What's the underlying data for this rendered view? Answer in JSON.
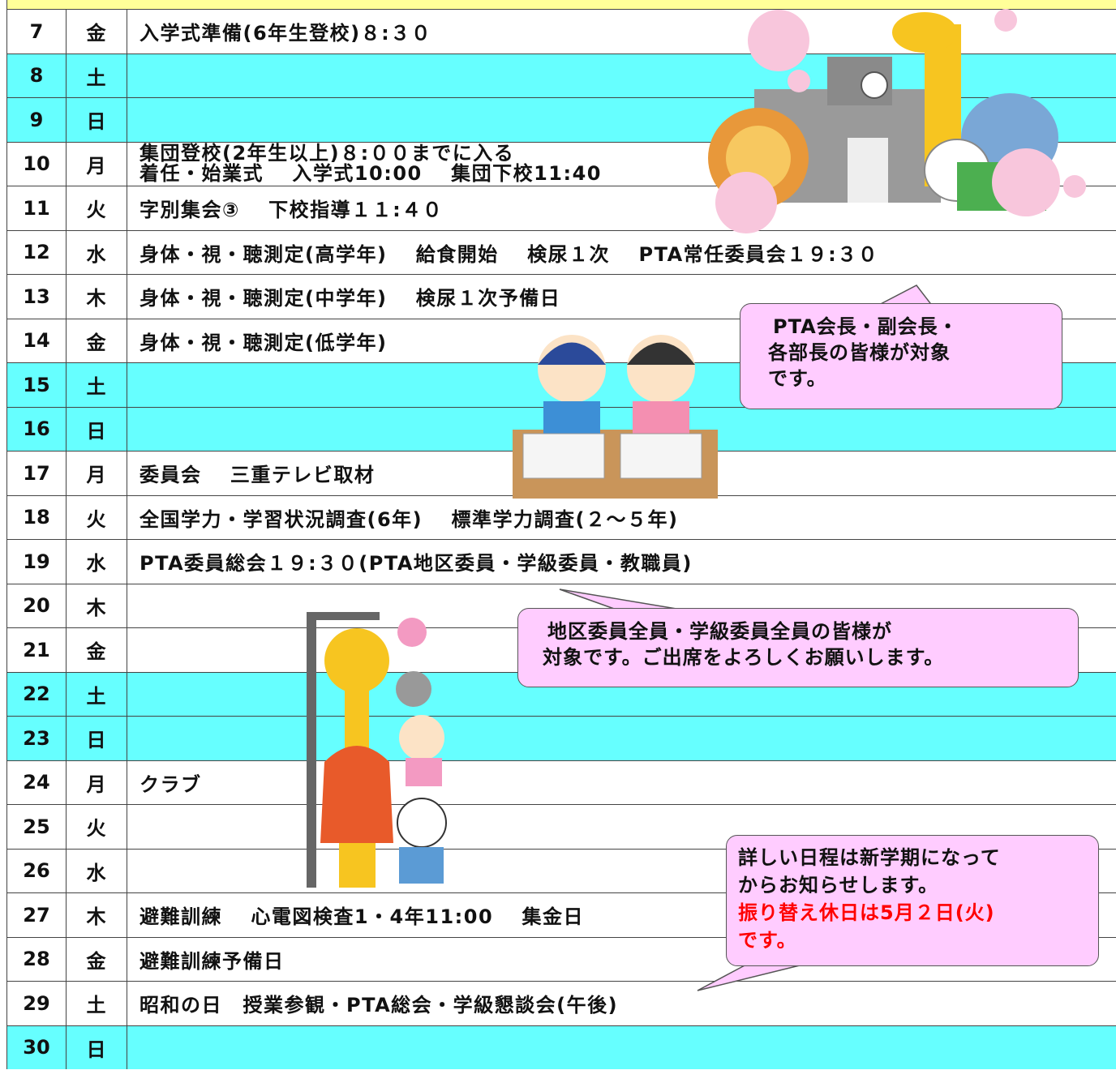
{
  "rows": [
    {
      "date": "7",
      "weekday": "金",
      "events": [
        "入学式準備(6年生登校)８:３０"
      ]
    },
    {
      "date": "8",
      "weekday": "土",
      "weekend": true
    },
    {
      "date": "9",
      "weekday": "日",
      "weekend": true
    },
    {
      "date": "10",
      "weekday": "月",
      "events": [
        "集団登校(2年生以上)８:００までに入る",
        "着任・始業式　 入学式10:00　 集団下校11:40"
      ]
    },
    {
      "date": "11",
      "weekday": "火",
      "events": [
        "字別集会③　 下校指導１１:４０"
      ]
    },
    {
      "date": "12",
      "weekday": "水",
      "events": [
        "身体・視・聴測定(高学年)　 給食開始　 検尿１次　 PTA常任委員会１９:３０"
      ]
    },
    {
      "date": "13",
      "weekday": "木",
      "events": [
        "身体・視・聴測定(中学年)　 検尿１次予備日"
      ]
    },
    {
      "date": "14",
      "weekday": "金",
      "events": [
        "身体・視・聴測定(低学年)"
      ]
    },
    {
      "date": "15",
      "weekday": "土",
      "weekend": true
    },
    {
      "date": "16",
      "weekday": "日",
      "weekend": true
    },
    {
      "date": "17",
      "weekday": "月",
      "events": [
        "委員会　 三重テレビ取材"
      ]
    },
    {
      "date": "18",
      "weekday": "火",
      "events": [
        "全国学力・学習状況調査(6年)　 標準学力調査(２～５年)"
      ]
    },
    {
      "date": "19",
      "weekday": "水",
      "events": [
        "PTA委員総会１９:３０(PTA地区委員・学級委員・教職員)"
      ]
    },
    {
      "date": "20",
      "weekday": "木"
    },
    {
      "date": "21",
      "weekday": "金"
    },
    {
      "date": "22",
      "weekday": "土",
      "weekend": true
    },
    {
      "date": "23",
      "weekday": "日",
      "weekend": true
    },
    {
      "date": "24",
      "weekday": "月",
      "events": [
        "クラブ"
      ]
    },
    {
      "date": "25",
      "weekday": "火"
    },
    {
      "date": "26",
      "weekday": "水"
    },
    {
      "date": "27",
      "weekday": "木",
      "events": [
        "避難訓練　 心電図検査1・4年11:00　 集金日"
      ]
    },
    {
      "date": "28",
      "weekday": "金",
      "events": [
        "避難訓練予備日"
      ]
    },
    {
      "date": "29",
      "weekday": "土",
      "events": [
        "昭和の日　授業参観・PTA総会・学級懇談会(午後)"
      ]
    },
    {
      "date": "30",
      "weekday": "日",
      "weekend": true
    }
  ],
  "callouts": [
    {
      "lines": [
        "PTA会長・副会長・",
        "各部長の皆様が対象",
        "です。"
      ]
    },
    {
      "lines": [
        "地区委員全員・学級委員全員の皆様が",
        "対象です。ご出席をよろしくお願いします。"
      ]
    },
    {
      "lines": [
        "詳しい日程は新学期になって",
        "からお知らせします。"
      ],
      "notice_lines": [
        "振り替え休日は5月２日(火)",
        "です。"
      ]
    }
  ]
}
